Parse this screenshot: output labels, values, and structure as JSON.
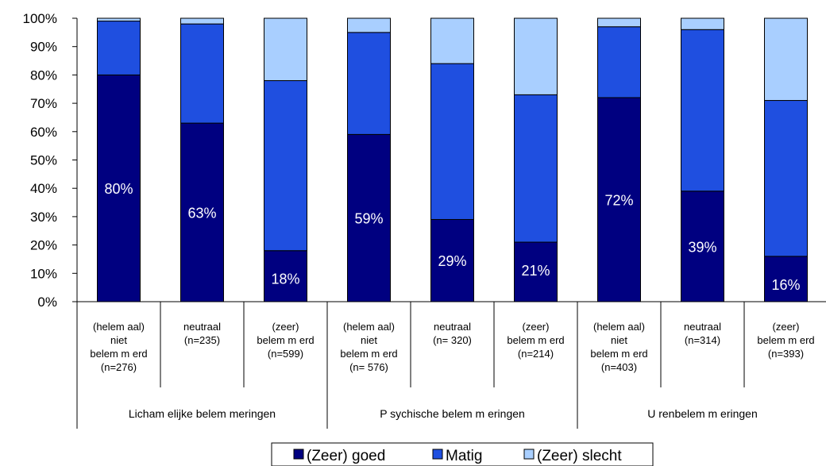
{
  "chart_data": {
    "type": "bar",
    "stacked": true,
    "percent_stacked": true,
    "title": "",
    "xlabel": "",
    "ylabel": "",
    "ylim": [
      0,
      100
    ],
    "yticks": [
      "0%",
      "10%",
      "20%",
      "30%",
      "40%",
      "50%",
      "60%",
      "70%",
      "80%",
      "90%",
      "100%"
    ],
    "grid": false,
    "legend_position": "bottom",
    "categories": [
      [
        "(helem aal)",
        "niet",
        "belem m erd",
        "(n=276)"
      ],
      [
        "neutraal",
        "(n=235)"
      ],
      [
        "(zeer)",
        "belem m erd",
        "(n=599)"
      ],
      [
        "(helem aal)",
        "niet",
        "belem m erd",
        "(n= 576)"
      ],
      [
        "neutraal",
        "(n= 320)"
      ],
      [
        "(zeer)",
        "belem m erd",
        "(n=214)"
      ],
      [
        "(helem aal)",
        "niet",
        "belem m erd",
        "(n=403)"
      ],
      [
        "neutraal",
        "(n=314)"
      ],
      [
        "(zeer)",
        "belem m erd",
        "(n=393)"
      ]
    ],
    "groups": [
      {
        "label": "Licham elijke belem meringen",
        "span": [
          0,
          2
        ]
      },
      {
        "label": "P sychische belem m eringen",
        "span": [
          3,
          5
        ]
      },
      {
        "label": "U renbelem m eringen",
        "span": [
          6,
          8
        ]
      }
    ],
    "series": [
      {
        "name": "(Zeer) goed",
        "color": "#000080",
        "values": [
          80,
          63,
          18,
          59,
          29,
          21,
          72,
          39,
          16
        ]
      },
      {
        "name": "Matig",
        "color": "#1F4FE0",
        "values": [
          19,
          35,
          60,
          36,
          55,
          52,
          25,
          57,
          55
        ]
      },
      {
        "name": "(Zeer) slecht",
        "color": "#A9CFFF",
        "values": [
          1,
          2,
          22,
          5,
          16,
          27,
          3,
          4,
          29
        ]
      }
    ],
    "data_labels": [
      "80%",
      "63%",
      "18%",
      "59%",
      "29%",
      "21%",
      "72%",
      "39%",
      "16%"
    ]
  }
}
